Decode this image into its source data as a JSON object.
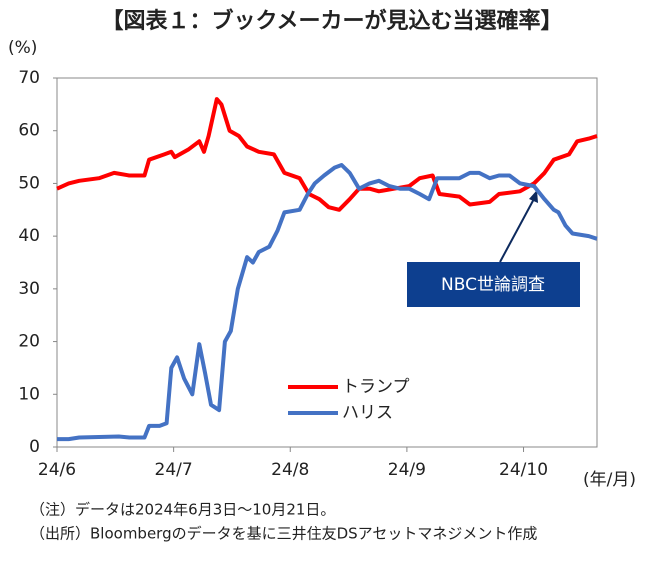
{
  "chart_data": {
    "type": "line",
    "title": "【図表１：ブックメーカーが見込む当選確率】",
    "y_unit": "(%)",
    "x_unit": "(年/月)",
    "xlim": [
      6,
      10.63
    ],
    "ylim": [
      0,
      70
    ],
    "xticks": [
      {
        "value": 6,
        "label": "24/6"
      },
      {
        "value": 7,
        "label": "24/7"
      },
      {
        "value": 8,
        "label": "24/8"
      },
      {
        "value": 9,
        "label": "24/9"
      },
      {
        "value": 10,
        "label": "24/10"
      }
    ],
    "yticks": [
      0,
      10,
      20,
      30,
      40,
      50,
      60,
      70
    ],
    "annotation": "NBC世論調査",
    "notes": [
      "（注）データは2024年6月3日～10月21日。",
      "（出所）Bloombergのデータを基に三井住友DSアセットマネジメント作成"
    ],
    "series": [
      {
        "name": "トランプ",
        "color": "#ff0000",
        "x": [
          6.0,
          6.1,
          6.19,
          6.36,
          6.49,
          6.62,
          6.75,
          6.79,
          6.92,
          6.98,
          7.01,
          7.13,
          7.22,
          7.26,
          7.3,
          7.37,
          7.41,
          7.48,
          7.56,
          7.63,
          7.73,
          7.86,
          7.95,
          8.08,
          8.16,
          8.25,
          8.33,
          8.42,
          8.51,
          8.59,
          8.68,
          8.76,
          8.89,
          9.02,
          9.11,
          9.22,
          9.28,
          9.45,
          9.54,
          9.71,
          9.79,
          9.97,
          10.09,
          10.18,
          10.26,
          10.39,
          10.46,
          10.56,
          10.63
        ],
        "values": [
          49,
          50,
          50.5,
          51,
          52,
          51.5,
          51.5,
          54.5,
          55.5,
          56,
          55,
          56.5,
          58,
          56,
          59,
          66,
          65,
          60,
          59,
          57,
          56,
          55.5,
          52,
          51,
          48,
          47,
          45.5,
          45,
          47,
          49,
          49,
          48.5,
          49,
          49.5,
          51,
          51.5,
          48,
          47.5,
          46,
          46.5,
          48,
          48.5,
          50,
          52,
          54.5,
          55.5,
          58,
          58.5,
          59
        ]
      },
      {
        "name": "ハリス",
        "color": "#4472c4",
        "x": [
          6.0,
          6.1,
          6.19,
          6.53,
          6.62,
          6.75,
          6.79,
          6.88,
          6.94,
          6.98,
          7.03,
          7.09,
          7.16,
          7.22,
          7.27,
          7.32,
          7.39,
          7.44,
          7.49,
          7.55,
          7.63,
          7.68,
          7.73,
          7.82,
          7.89,
          7.95,
          8.08,
          8.15,
          8.21,
          8.29,
          8.38,
          8.44,
          8.51,
          8.59,
          8.68,
          8.76,
          8.85,
          8.94,
          9.02,
          9.11,
          9.19,
          9.26,
          9.36,
          9.45,
          9.54,
          9.62,
          9.71,
          9.79,
          9.88,
          9.97,
          10.09,
          10.18,
          10.26,
          10.3,
          10.36,
          10.42,
          10.56,
          10.63
        ],
        "values": [
          1.5,
          1.5,
          1.8,
          2,
          1.8,
          1.8,
          4,
          4,
          4.5,
          15,
          17,
          13,
          10,
          19.5,
          14,
          8,
          7,
          20,
          22,
          30,
          36,
          35,
          37,
          38,
          41,
          44.5,
          45,
          48,
          50,
          51.5,
          53,
          53.5,
          52,
          49,
          50,
          50.5,
          49.5,
          49,
          49,
          48,
          47,
          51,
          51,
          51,
          52,
          52,
          51,
          51.5,
          51.5,
          50,
          49.5,
          47,
          45,
          44.5,
          42,
          40.5,
          40,
          39.5
        ]
      }
    ]
  }
}
